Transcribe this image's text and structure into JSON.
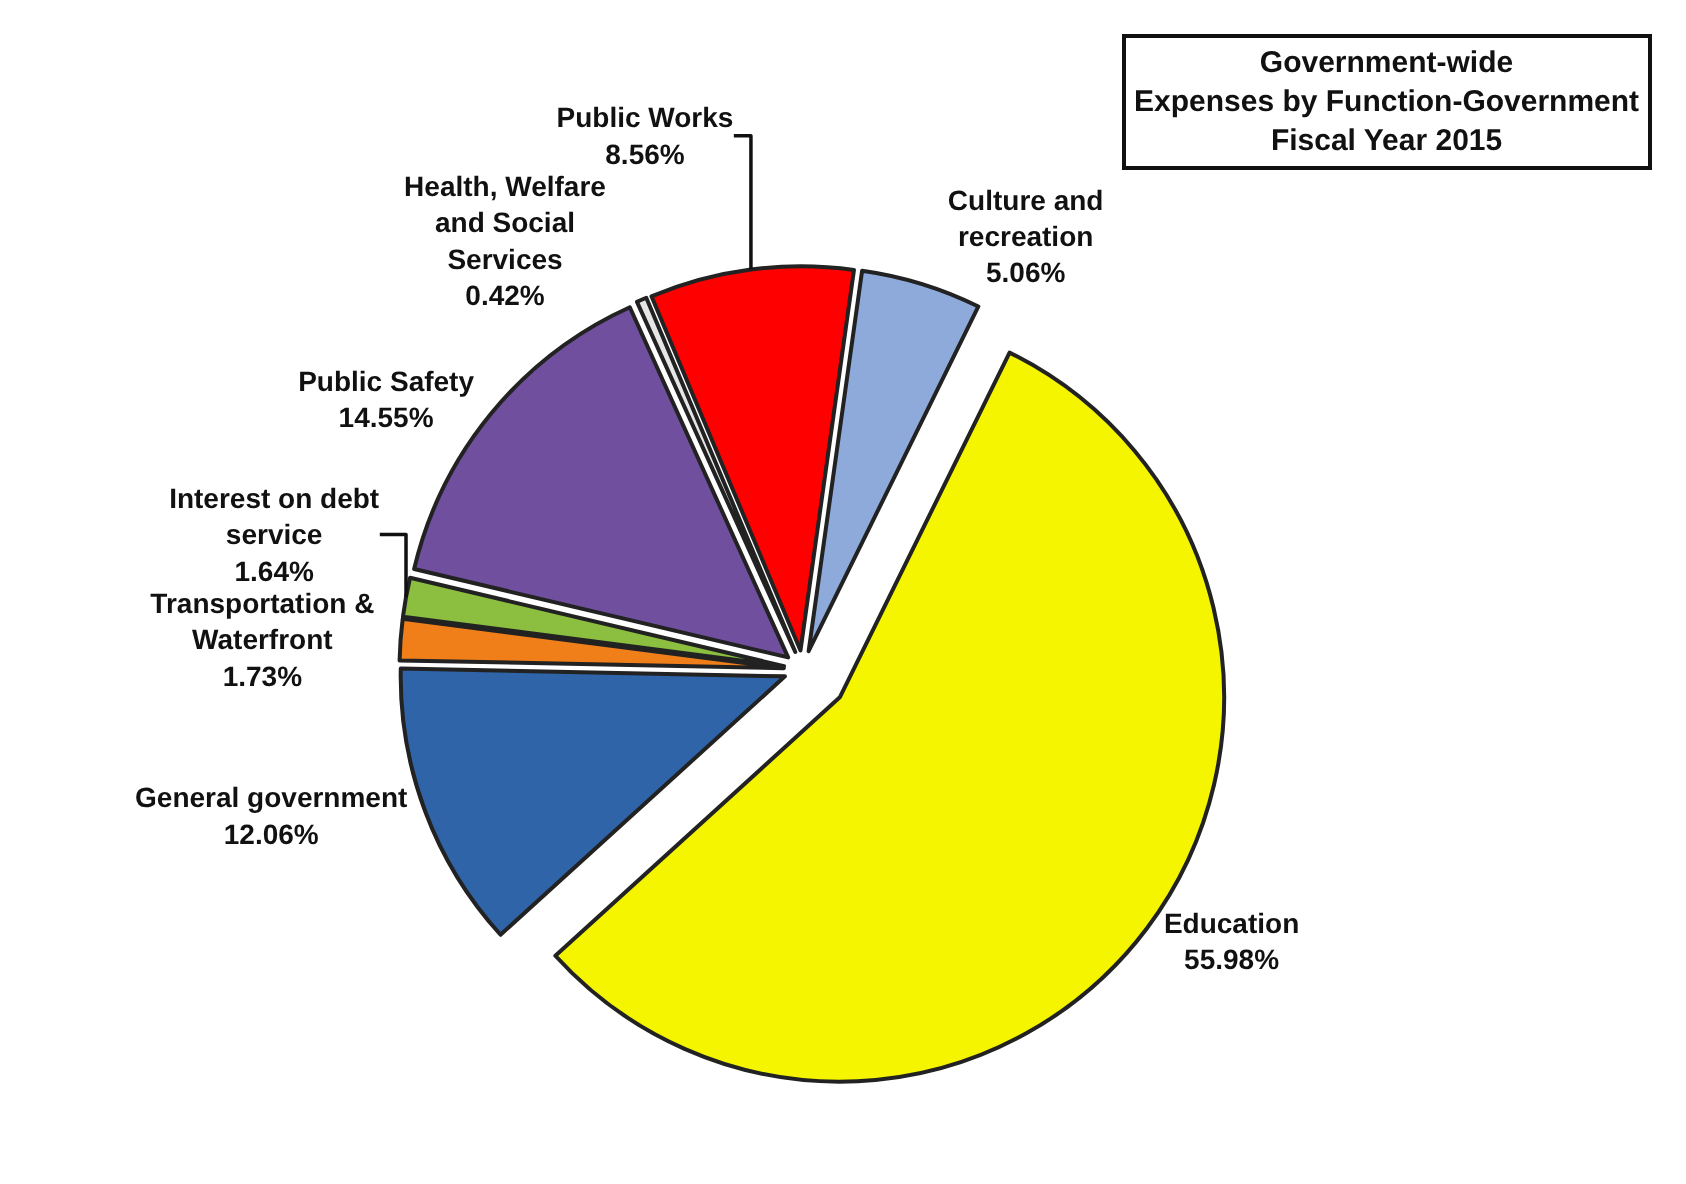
{
  "chart_data": {
    "type": "pie",
    "title": "Government-wide\nExpenses by Function-Government\nFiscal Year 2015",
    "categories": [
      "Culture and recreation",
      "Education",
      "General government",
      "Transportation & Waterfront",
      "Interest on debt service",
      "Public Safety",
      "Health, Welfare and Social Services",
      "Public Works"
    ],
    "values": [
      5.06,
      55.98,
      12.06,
      1.73,
      1.64,
      14.55,
      0.42,
      8.56
    ],
    "colors": [
      "#8eaadb",
      "#f5f500",
      "#2f64a8",
      "#f07f1a",
      "#8cbf3f",
      "#6f4f9e",
      "#e6e6e6",
      "#ff0000"
    ],
    "value_labels": [
      "5.06%",
      "55.98%",
      "12.06%",
      "1.73%",
      "1.64%",
      "14.55%",
      "0.42%",
      "8.56%"
    ],
    "legend": false
  }
}
